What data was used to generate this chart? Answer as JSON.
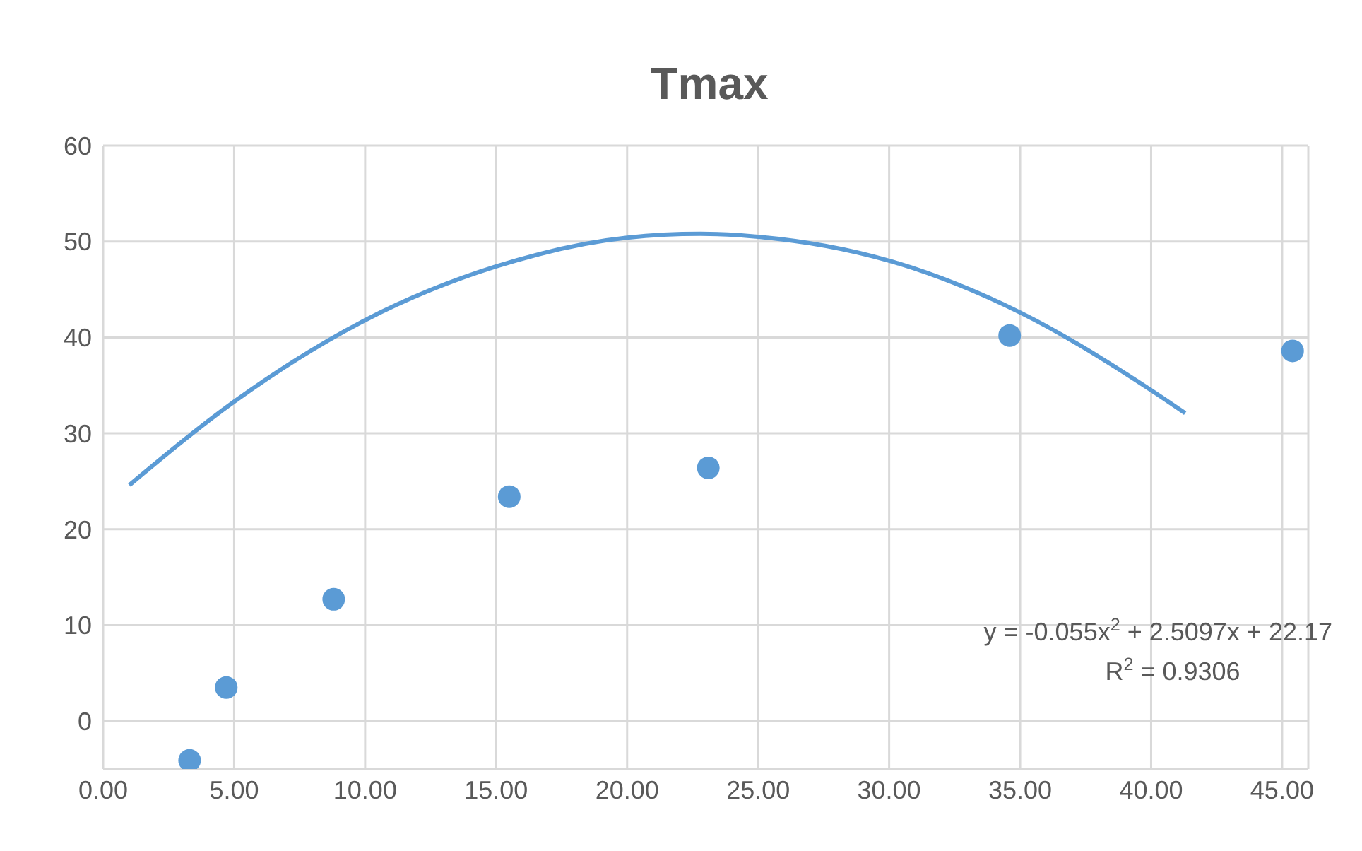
{
  "chart_data": {
    "type": "scatter",
    "title": "Tmax",
    "xlim": [
      0,
      46
    ],
    "xticks": [
      {
        "value": 0,
        "label": "0.00"
      },
      {
        "value": 5,
        "label": "5.00"
      },
      {
        "value": 10,
        "label": "10.00"
      },
      {
        "value": 15,
        "label": "15.00"
      },
      {
        "value": 20,
        "label": "20.00"
      },
      {
        "value": 25,
        "label": "25.00"
      },
      {
        "value": 30,
        "label": "30.00"
      },
      {
        "value": 35,
        "label": "35.00"
      },
      {
        "value": 40,
        "label": "40.00"
      },
      {
        "value": 45,
        "label": "45.00"
      }
    ],
    "ylim": [
      -5,
      60
    ],
    "yticks": [
      0,
      10,
      20,
      30,
      40,
      50,
      60
    ],
    "grid": true,
    "series": [
      {
        "marker": "circle",
        "color": "#5b9bd5",
        "x": [
          3.3,
          4.7,
          8.8,
          15.5,
          23.1,
          34.6,
          45.4
        ],
        "values": [
          -4.1,
          3.5,
          12.7,
          23.4,
          26.4,
          40.2,
          38.6
        ]
      },
      {
        "type": "line",
        "marker": "none",
        "color": "#5b9bd5",
        "x": [
          1.0,
          5,
          10,
          15,
          20,
          22.8,
          25,
          30,
          35,
          40,
          41.3
        ],
        "values": [
          24.6,
          33.3,
          41.8,
          47.4,
          50.4,
          50.8,
          50.5,
          48.0,
          42.6,
          34.5,
          32.1
        ]
      }
    ],
    "annotations": [
      "y = -0.055x$^{2}$ + 2.5097x + 22.17",
      "R$^{2}$ = 0.9306"
    ]
  }
}
